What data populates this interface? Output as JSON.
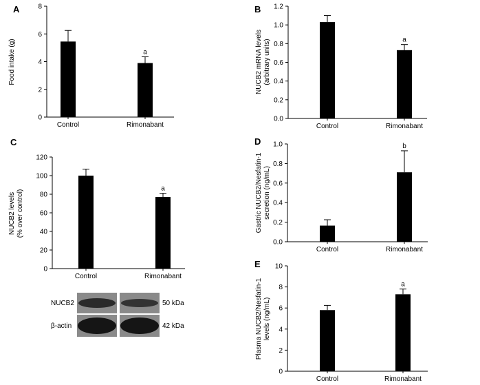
{
  "chart_data": [
    {
      "type": "bar",
      "panel": "A",
      "categories": [
        "Control",
        "Rimonabant"
      ],
      "values": [
        5.45,
        3.9
      ],
      "errors": [
        0.8,
        0.45
      ],
      "significance": [
        "",
        "a"
      ],
      "ylabel": [
        "Food intake (g)"
      ],
      "ylim": [
        0,
        8
      ],
      "yticks": [
        0,
        2,
        4,
        6,
        8
      ],
      "grid": false
    },
    {
      "type": "bar",
      "panel": "B",
      "categories": [
        "Control",
        "Rimonabant"
      ],
      "values": [
        1.03,
        0.73
      ],
      "errors": [
        0.07,
        0.06
      ],
      "significance": [
        "",
        "a"
      ],
      "ylabel": [
        "NUCB2 mRNA levels",
        "(arbitrary units)"
      ],
      "ylim": [
        0,
        1.2
      ],
      "yticks": [
        0.0,
        0.2,
        0.4,
        0.6,
        0.8,
        1.0,
        1.2
      ],
      "ytick_decimals": 1,
      "grid": false
    },
    {
      "type": "bar",
      "panel": "C",
      "categories": [
        "Control",
        "Rimonabant"
      ],
      "values": [
        100,
        77
      ],
      "errors": [
        7,
        4
      ],
      "significance": [
        "",
        "a"
      ],
      "ylabel": [
        "NUCB2  levels",
        "(% over control)"
      ],
      "ylim": [
        0,
        120
      ],
      "yticks": [
        0,
        20,
        40,
        60,
        80,
        100,
        120
      ],
      "grid": false
    },
    {
      "type": "bar",
      "panel": "D",
      "categories": [
        "Control",
        "Rimonabant"
      ],
      "values": [
        0.165,
        0.71
      ],
      "errors": [
        0.06,
        0.22
      ],
      "significance": [
        "",
        "b"
      ],
      "ylabel": [
        "Gastric NUCB2/Nesfatin-1",
        "secretion (ng/mL)"
      ],
      "ylim": [
        0,
        1.0
      ],
      "yticks": [
        0.0,
        0.2,
        0.4,
        0.6,
        0.8,
        1.0
      ],
      "ytick_decimals": 1,
      "grid": false
    },
    {
      "type": "bar",
      "panel": "E",
      "categories": [
        "Control",
        "Rimonabant"
      ],
      "values": [
        5.8,
        7.3
      ],
      "errors": [
        0.45,
        0.5
      ],
      "significance": [
        "",
        "a"
      ],
      "ylabel": [
        "Plasma NUCB2/Nesfatin-1",
        "levels (ng/mL)"
      ],
      "ylim": [
        0,
        10
      ],
      "yticks": [
        0,
        2,
        4,
        6,
        8,
        10
      ],
      "grid": false
    }
  ],
  "blot": {
    "rows": [
      {
        "label": "NUCB2",
        "size": "50 kDa"
      },
      {
        "label": "β-actin",
        "size": "42 kDa"
      }
    ]
  },
  "colors": {
    "bar": "#000000",
    "axis": "#000000",
    "band": "#2a2a2a",
    "blot_bg": "#8a8a8a"
  }
}
